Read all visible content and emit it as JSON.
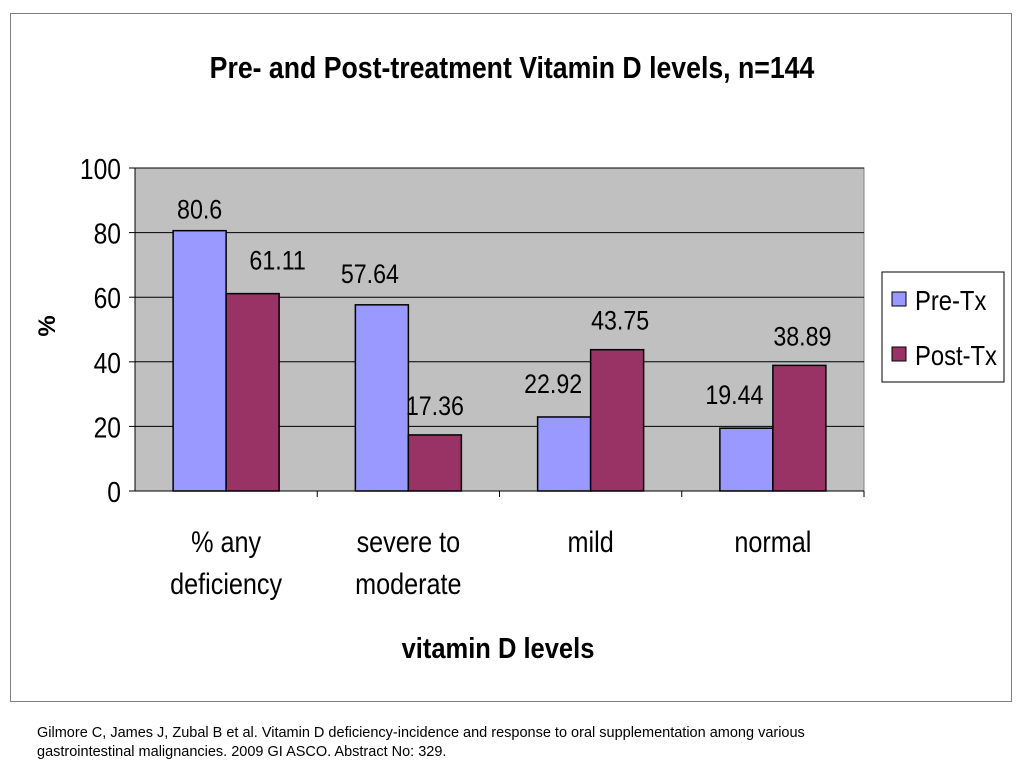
{
  "chart_data": {
    "type": "bar",
    "title": "Pre- and Post-treatment Vitamin D levels, n=144",
    "xlabel": "vitamin D levels",
    "ylabel": "%",
    "ylim": [
      0,
      100
    ],
    "yticks": [
      "0",
      "20",
      "40",
      "60",
      "80",
      "100"
    ],
    "grid": true,
    "legend_position": "right",
    "categories": [
      [
        "% any",
        "deficiency"
      ],
      [
        "severe to",
        "moderate"
      ],
      [
        "mild"
      ],
      [
        "normal"
      ]
    ],
    "series": [
      {
        "name": "Pre-Tx",
        "color": "#9999ff",
        "values": [
          80.6,
          57.64,
          22.92,
          19.44
        ],
        "labels": [
          "80.6",
          "57.64",
          "22.92",
          "19.44"
        ]
      },
      {
        "name": "Post-Tx",
        "color": "#993366",
        "values": [
          61.11,
          17.36,
          43.75,
          38.89
        ],
        "labels": [
          "61.11",
          "17.36",
          "43.75",
          "38.89"
        ]
      }
    ],
    "plot_background": "#c0c0c0"
  },
  "footer": {
    "line1": "Gilmore C, James J, Zubal B et al. Vitamin D deficiency-incidence and response to oral supplementation among various",
    "line2": "gastrointestinal malignancies. 2009 GI ASCO. Abstract No: 329."
  }
}
